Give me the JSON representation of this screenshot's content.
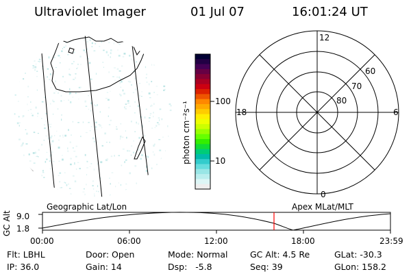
{
  "header": {
    "instrument": "Ultraviolet Imager",
    "date": "01 Jul 07",
    "time": "16:01:24 UT"
  },
  "colorbar": {
    "unit_label": "photon cm⁻²s⁻¹",
    "ticks": [
      "100",
      "10"
    ],
    "colors": [
      "#000033",
      "#220044",
      "#440055",
      "#660044",
      "#880033",
      "#aa0022",
      "#cc0011",
      "#dd2200",
      "#ee5500",
      "#ff8800",
      "#ffaa00",
      "#ffcc00",
      "#ffee00",
      "#eeff00",
      "#ccff00",
      "#99ff00",
      "#66ff00",
      "#33ee00",
      "#11dd33",
      "#00cc77",
      "#00bbaa",
      "#33cccc",
      "#66dddd",
      "#99e6e6",
      "#bbeeee",
      "#ddf6f6",
      "#eeeeee"
    ]
  },
  "polar": {
    "clock_labels": [
      "12",
      "18",
      "6",
      "0"
    ],
    "lat_labels": [
      "60",
      "70",
      "80"
    ]
  },
  "timeline": {
    "axis_label": "GC Alt",
    "y_max": "9.0",
    "y_min": "1.8",
    "left_caption": "Geographic Lat/Lon",
    "right_caption": "Apex MLat/MLT",
    "time_ticks": [
      "00:00",
      "06:00",
      "12:00",
      "18:00",
      "23:59"
    ],
    "marker_color": "#ff0000"
  },
  "status": {
    "flt": "Flt: LBHL",
    "ip": "IP: 36.0",
    "door": "Door: Open",
    "gain": "Gain: 14",
    "mode": "Mode: Normal",
    "dsp": "Dsp:   -5.8",
    "gc_alt": "GC Alt: 4.5 Re",
    "seq": "Seq: 39",
    "glat": "GLat: -30.3",
    "glon": "GLon: 158.2"
  }
}
